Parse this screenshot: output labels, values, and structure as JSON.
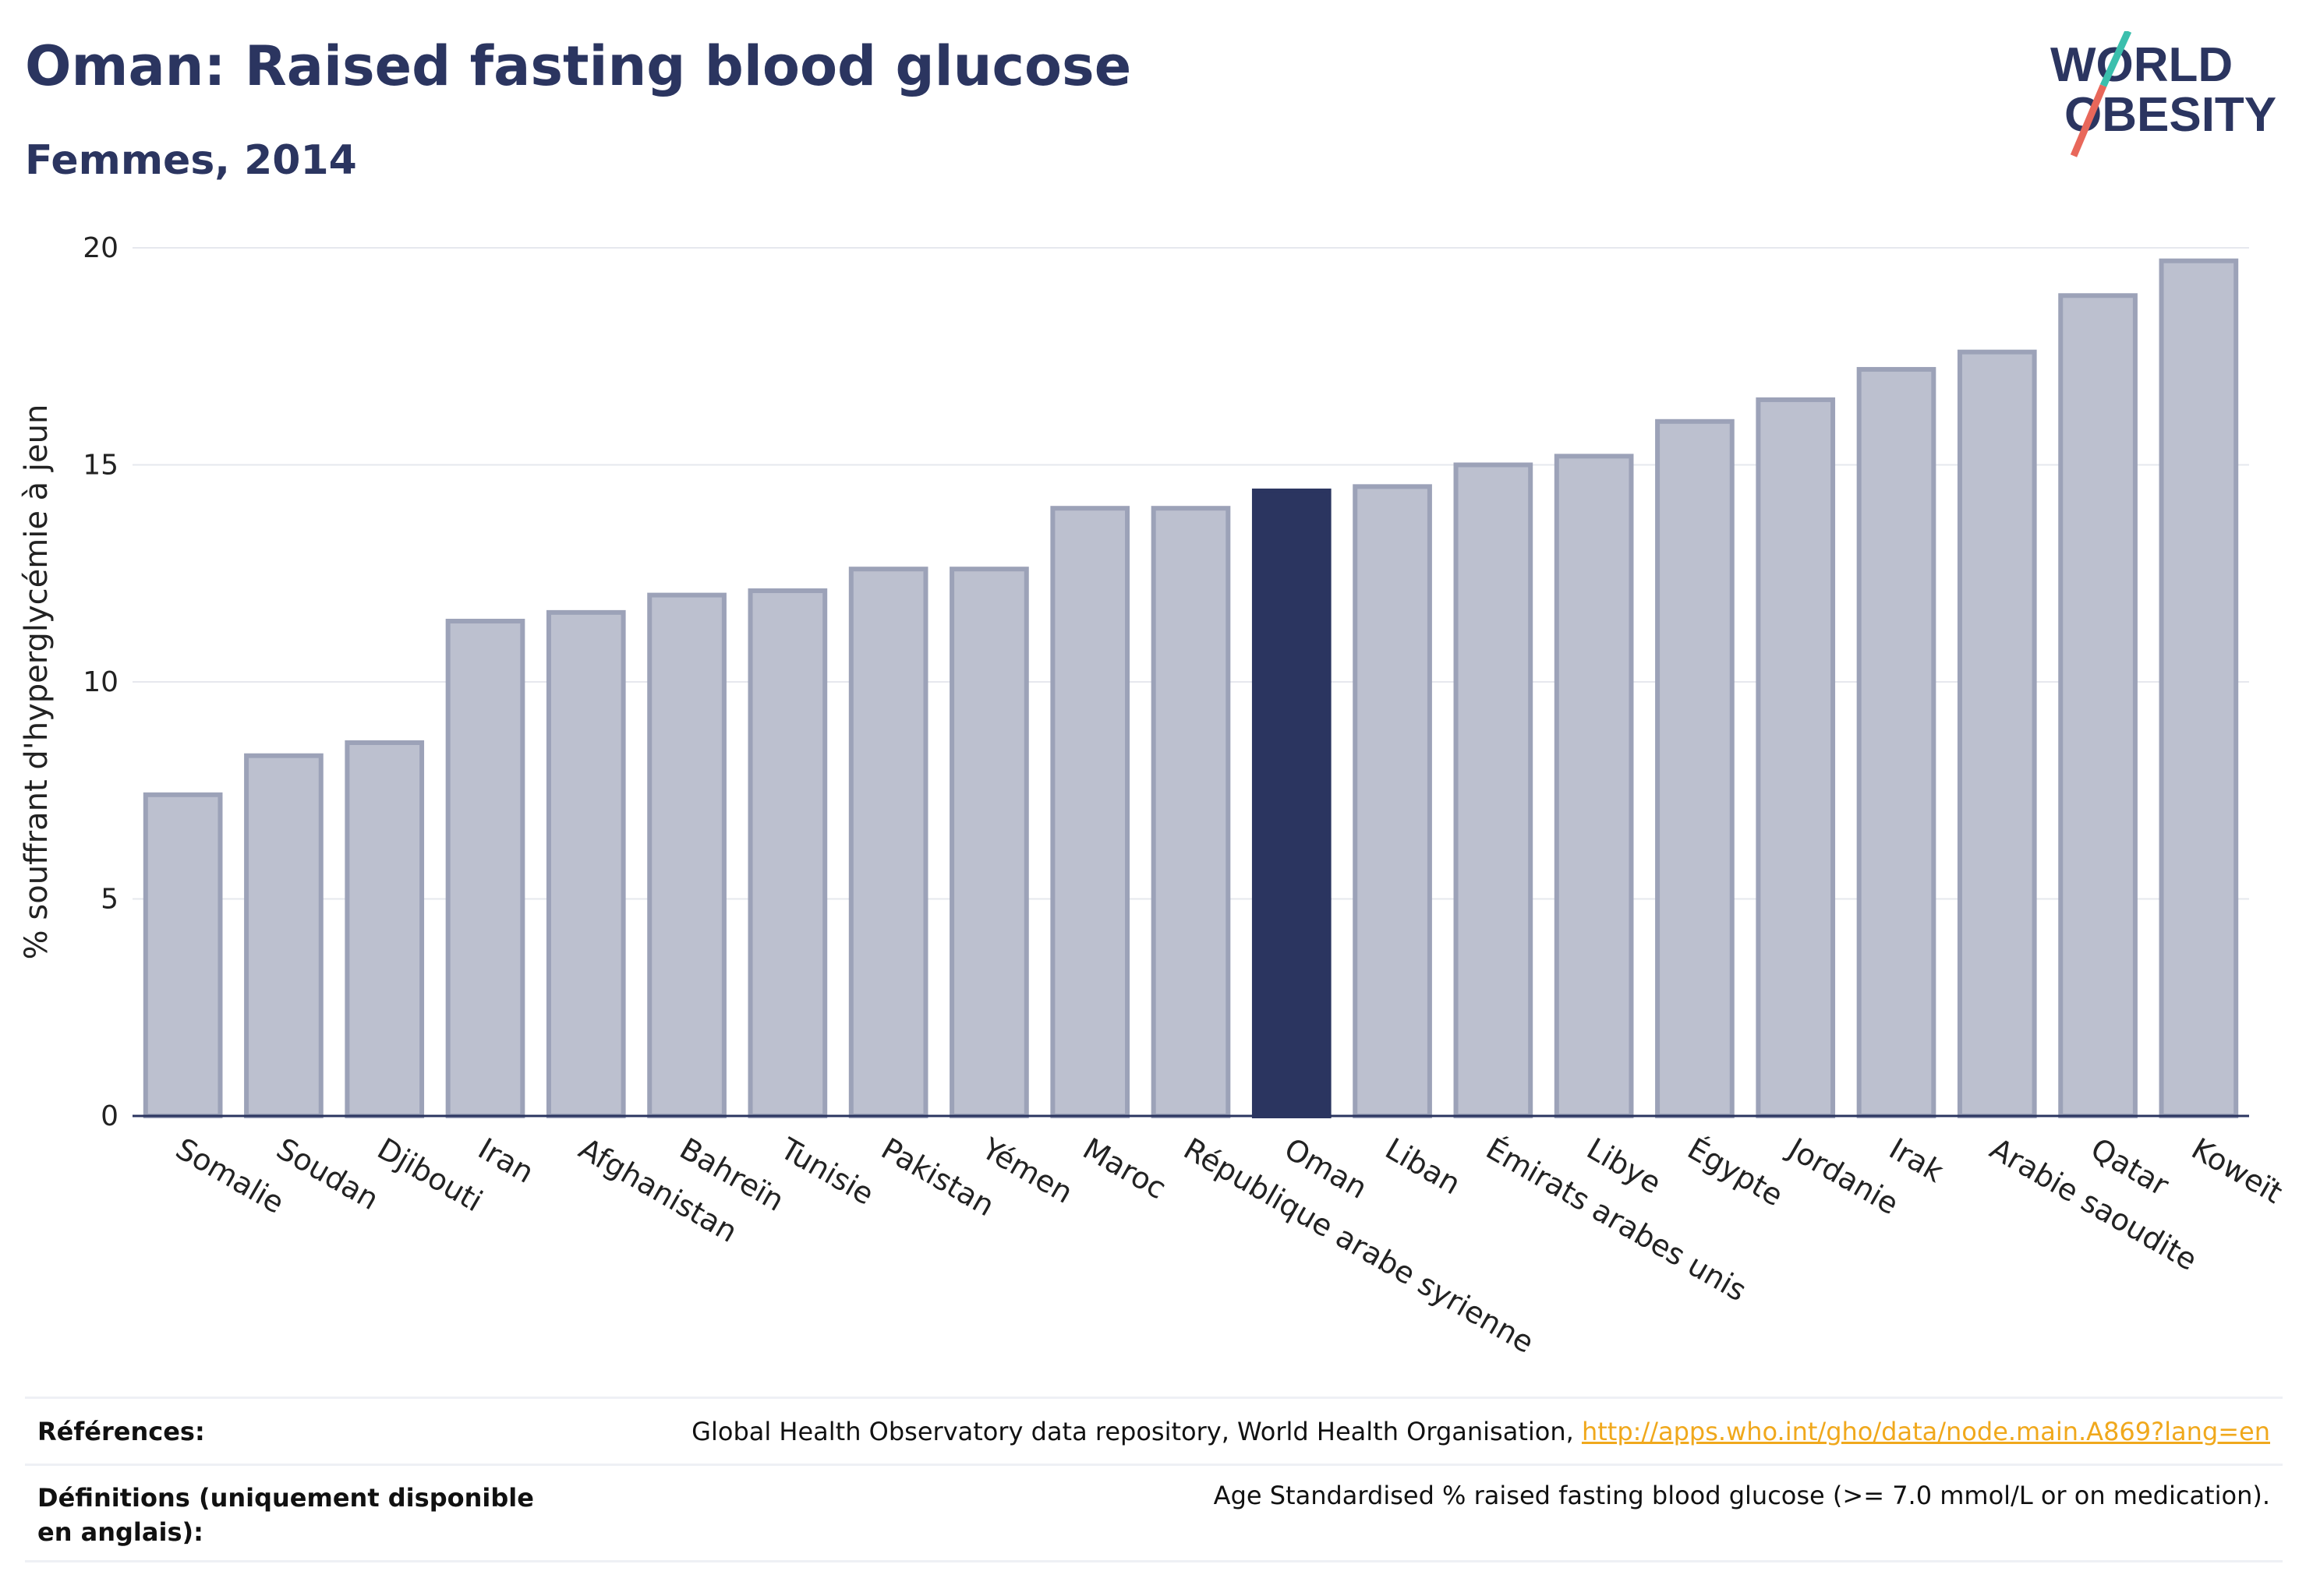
{
  "header": {
    "title": "Oman: Raised fasting blood glucose",
    "subtitle": "Femmes, 2014"
  },
  "logo": {
    "line1": "WORLD",
    "line2": "OBESITY"
  },
  "colors": {
    "highlight": "#2b3560",
    "bar_fill": "#bcc0cf",
    "bar_border": "#9ca2b8",
    "text": "#2b3560",
    "link": "#f0a81c",
    "logo_teal": "#3bbfad",
    "logo_coral": "#e8675a"
  },
  "chart_data": {
    "type": "bar",
    "ylabel": "% souffrant d'hyperglycémie à jeun",
    "ylim": [
      0,
      20
    ],
    "yticks": [
      0,
      5,
      10,
      15,
      20
    ],
    "grid": true,
    "highlight": "Oman",
    "categories": [
      "Somalie",
      "Soudan",
      "Djibouti",
      "Iran",
      "Afghanistan",
      "Bahreïn",
      "Tunisie",
      "Pakistan",
      "Yémen",
      "Maroc",
      "République arabe syrienne",
      "Oman",
      "Liban",
      "Émirats arabes unis",
      "Libye",
      "Égypte",
      "Jordanie",
      "Irak",
      "Arabie saoudite",
      "Qatar",
      "Koweït"
    ],
    "values": [
      7.4,
      8.3,
      8.6,
      11.4,
      11.6,
      12.0,
      12.1,
      12.6,
      12.6,
      14.0,
      14.0,
      14.4,
      14.5,
      15.0,
      15.2,
      16.0,
      16.5,
      17.2,
      17.6,
      18.9,
      19.7
    ]
  },
  "footer": {
    "references_label": "Références:",
    "references_text": "Global Health Observatory data repository, World Health Organisation, ",
    "references_link": "http://apps.who.int/gho/data/node.main.A869?lang=en",
    "definitions_label": "Définitions (uniquement disponible en anglais):",
    "definitions_text": "Age Standardised % raised fasting blood glucose (>= 7.0 mmol/L or on medication)."
  }
}
